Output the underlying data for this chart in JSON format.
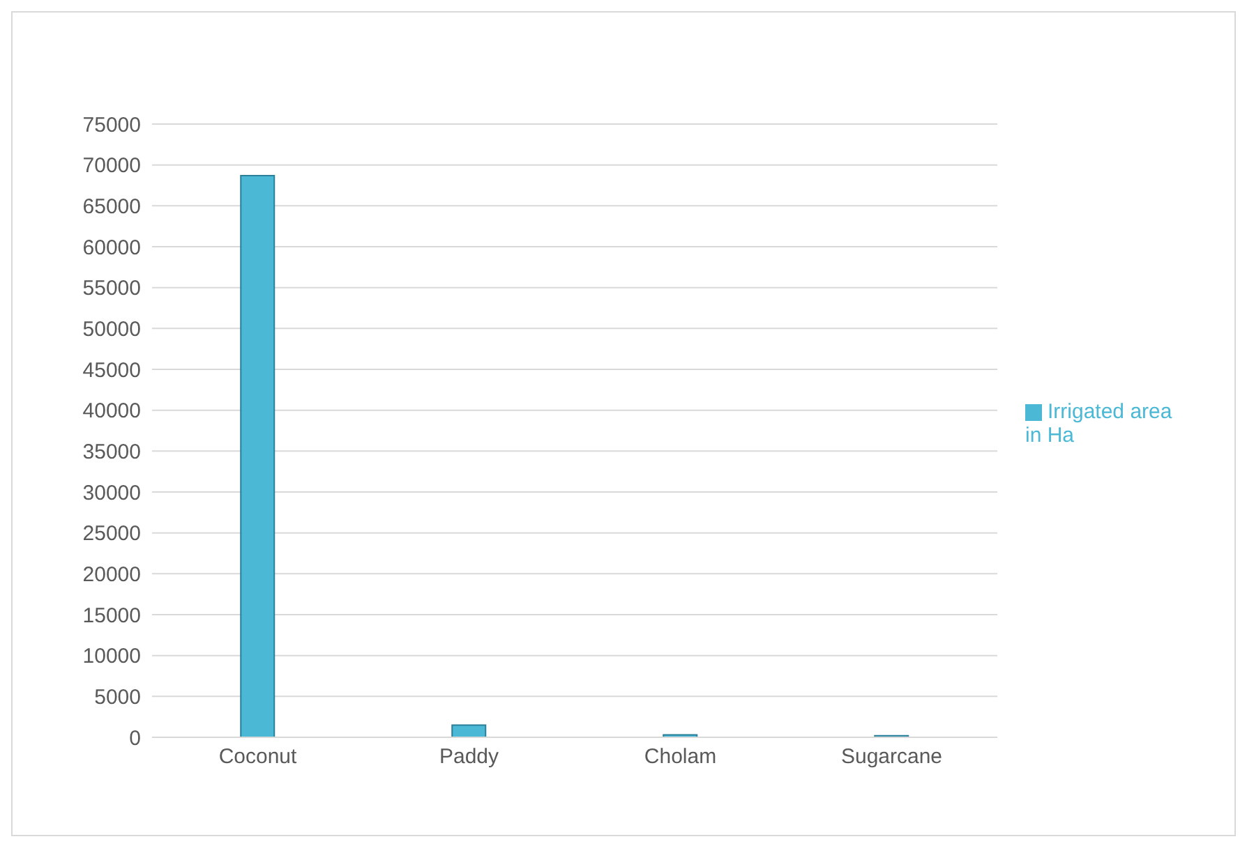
{
  "chart_data": {
    "type": "bar",
    "categories": [
      "Coconut",
      "Paddy",
      "Cholam",
      "Sugarcane"
    ],
    "series": [
      {
        "name": "Irrigated area in Ha",
        "color": "#4bb8d6",
        "values": [
          68700,
          1500,
          300,
          200
        ]
      }
    ],
    "ylim": [
      0,
      75000
    ],
    "yticks": [
      0,
      5000,
      10000,
      15000,
      20000,
      25000,
      30000,
      35000,
      40000,
      45000,
      50000,
      55000,
      60000,
      65000,
      70000,
      75000
    ],
    "grid": "y",
    "legend": "right"
  }
}
